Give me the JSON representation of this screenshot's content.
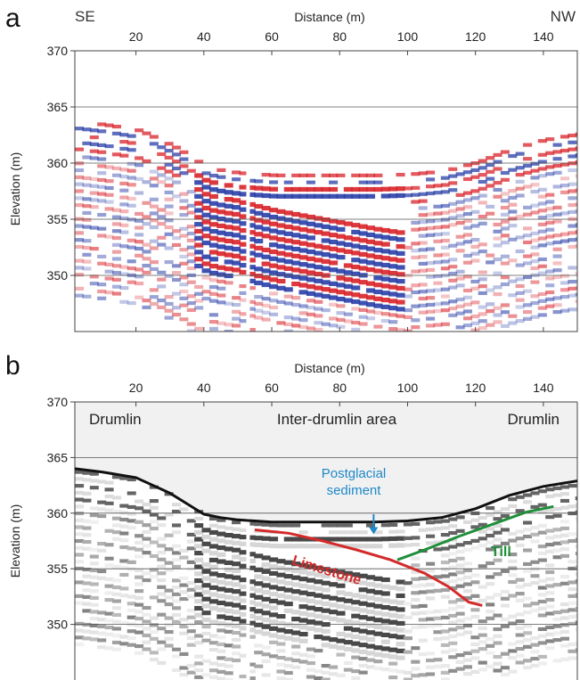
{
  "chart_data": [
    {
      "panel": "a",
      "type": "heatmap",
      "xlabel": "Distance (m)",
      "ylabel": "Elevation (m)",
      "xlim": [
        2,
        150
      ],
      "ylim": [
        345,
        370
      ],
      "x_ticks": [
        20,
        40,
        60,
        80,
        100,
        120,
        140
      ],
      "y_ticks": [
        350,
        355,
        360,
        365,
        370
      ],
      "grid": "horizontal",
      "direction_left": "SE",
      "direction_right": "NW",
      "colors": {
        "positive": "#d8232a",
        "negative": "#2a3fa8",
        "background": "#ffffff"
      },
      "surface": {
        "x": [
          2,
          10,
          20,
          30,
          40,
          45,
          50,
          55,
          60,
          70,
          80,
          90,
          100,
          110,
          120,
          130,
          140,
          150
        ],
        "y": [
          364,
          363.7,
          363.2,
          361.8,
          359.9,
          359.6,
          359.4,
          359.3,
          359.2,
          359.2,
          359.2,
          359.2,
          359.3,
          359.6,
          360.4,
          361.6,
          362.4,
          362.9
        ]
      }
    },
    {
      "panel": "b",
      "type": "heatmap",
      "xlabel": "Distance (m)",
      "ylabel": "Elevation (m)",
      "xlim": [
        2,
        150
      ],
      "ylim": [
        345,
        370
      ],
      "x_ticks": [
        20,
        40,
        60,
        80,
        100,
        120,
        140
      ],
      "y_ticks": [
        350,
        355,
        360,
        365,
        370
      ],
      "grid": "horizontal",
      "colors": {
        "ground_surface": "#111111",
        "limestone": "#d42a2a",
        "till": "#1f8f3a",
        "postglacial": "#1e88c8",
        "sky": "#f1f1f1"
      },
      "ground_surface": {
        "x": [
          2,
          10,
          20,
          30,
          40,
          45,
          50,
          55,
          60,
          70,
          80,
          90,
          100,
          110,
          120,
          130,
          140,
          150
        ],
        "y": [
          364,
          363.7,
          363.2,
          361.8,
          359.9,
          359.6,
          359.4,
          359.3,
          359.2,
          359.2,
          359.2,
          359.2,
          359.3,
          359.6,
          360.4,
          361.6,
          362.4,
          362.9
        ]
      },
      "limestone_line": {
        "x": [
          55,
          65,
          75,
          85,
          95,
          105,
          112,
          118,
          122
        ],
        "y": [
          358.5,
          358.2,
          357.5,
          356.7,
          355.8,
          354.6,
          353.4,
          352.0,
          351.7
        ]
      },
      "till_line": {
        "x": [
          97,
          105,
          115,
          125,
          135,
          143
        ],
        "y": [
          355.8,
          356.7,
          357.9,
          359.0,
          360.1,
          360.6
        ]
      },
      "postglacial_arrow": {
        "x": 90,
        "y_from": 359.9,
        "y_to": 358.1
      },
      "region_labels": [
        "Drumlin",
        "Inter-drumlin area",
        "Drumlin"
      ],
      "annotations": {
        "postglacial": [
          "Postglacial",
          "sediment"
        ],
        "limestone": "Limestone",
        "till": "Till"
      }
    }
  ]
}
